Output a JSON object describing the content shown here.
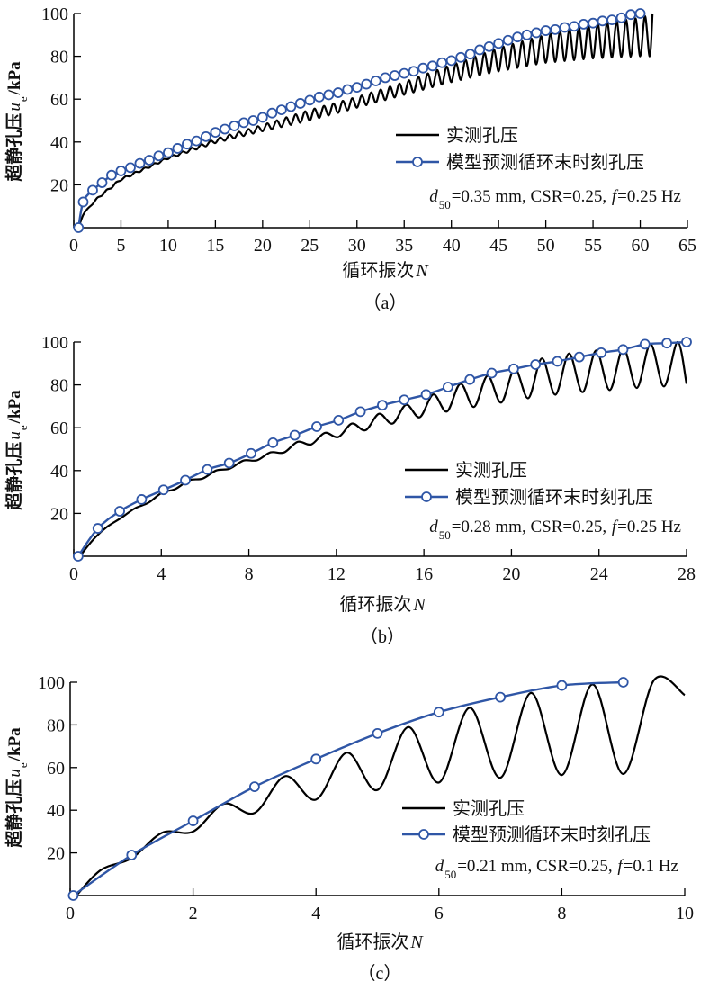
{
  "colors": {
    "measured": "#000000",
    "model": "#2f56a6",
    "marker_fill": "#ffffff"
  },
  "chart_data": [
    {
      "type": "line",
      "panel_label": "（a）",
      "xlabel": "循环振次",
      "xlabel_var": "N",
      "ylabel": "超静孔压",
      "ylabel_var": "u",
      "ylabel_sub": "e",
      "ylabel_unit": "/kPa",
      "xlim": [
        0,
        65
      ],
      "ylim": [
        0,
        100
      ],
      "xticks": [
        0,
        5,
        10,
        15,
        20,
        25,
        30,
        35,
        40,
        45,
        50,
        55,
        60,
        65
      ],
      "yticks": [
        20,
        40,
        60,
        80,
        100
      ],
      "legend": {
        "placement": "center-right",
        "measured": "实测孔压",
        "model": "模型预测循环末时刻孔压"
      },
      "annotation": {
        "d_sym": "d",
        "d_sub": "50",
        "text1": "=0.35 mm, CSR=0.25, ",
        "f_sym": "f",
        "text2": "=0.25 Hz"
      },
      "model": {
        "x": [
          0.5,
          1,
          2,
          3,
          4,
          5,
          6,
          7,
          8,
          9,
          10,
          11,
          12,
          13,
          14,
          15,
          16,
          17,
          18,
          19,
          20,
          21,
          22,
          23,
          24,
          25,
          26,
          27,
          28,
          29,
          30,
          31,
          32,
          33,
          34,
          35,
          36,
          37,
          38,
          39,
          40,
          41,
          42,
          43,
          44,
          45,
          46,
          47,
          48,
          49,
          50,
          51,
          52,
          53,
          54,
          55,
          56,
          57,
          58,
          59,
          60
        ],
        "y": [
          0,
          12,
          17.5,
          21,
          24.5,
          26.5,
          28,
          30,
          31.5,
          33.5,
          35,
          37,
          39,
          40.5,
          42.5,
          44.5,
          46,
          47.5,
          49,
          50,
          51.5,
          53.5,
          55,
          56.5,
          58,
          59.5,
          61,
          62,
          63,
          64.5,
          65.5,
          67,
          68.5,
          70,
          71,
          72,
          73,
          74.5,
          75.5,
          77,
          78,
          79.5,
          81,
          83,
          84.5,
          86,
          87.5,
          89,
          90,
          91,
          92,
          92.5,
          93.5,
          94,
          95,
          95.5,
          96.5,
          97,
          98,
          99.5,
          100
        ]
      },
      "measured": {
        "start": [
          0.5,
          0
        ],
        "end": [
          61.3,
          100
        ],
        "period": 1,
        "first_peak": 1.5,
        "upper": [
          [
            1,
            6
          ],
          [
            2,
            12
          ],
          [
            3,
            16
          ],
          [
            5,
            23
          ],
          [
            10,
            33
          ],
          [
            15,
            41.5
          ],
          [
            20,
            48
          ],
          [
            25,
            55
          ],
          [
            30,
            61
          ],
          [
            35,
            68
          ],
          [
            40,
            76
          ],
          [
            45,
            84
          ],
          [
            50,
            90
          ],
          [
            55,
            95
          ],
          [
            60,
            98
          ],
          [
            61.3,
            100
          ]
        ],
        "lower": [
          [
            1,
            5
          ],
          [
            2,
            11
          ],
          [
            3,
            15
          ],
          [
            5,
            22
          ],
          [
            10,
            32
          ],
          [
            15,
            39.5
          ],
          [
            20,
            45
          ],
          [
            25,
            50
          ],
          [
            30,
            56
          ],
          [
            35,
            62
          ],
          [
            40,
            68
          ],
          [
            45,
            73
          ],
          [
            50,
            77
          ],
          [
            55,
            79
          ],
          [
            60,
            80
          ],
          [
            61.3,
            80
          ]
        ]
      }
    },
    {
      "type": "line",
      "panel_label": "（b）",
      "xlabel": "循环振次",
      "xlabel_var": "N",
      "ylabel": "超静孔压",
      "ylabel_var": "u",
      "ylabel_sub": "e",
      "ylabel_unit": "/kPa",
      "xlim": [
        0,
        28
      ],
      "ylim": [
        0,
        100
      ],
      "xticks": [
        0,
        4,
        8,
        12,
        16,
        20,
        24,
        28
      ],
      "yticks": [
        20,
        40,
        60,
        80,
        100
      ],
      "legend": {
        "placement": "center-right",
        "measured": "实测孔压",
        "model": "模型预测循环末时刻孔压"
      },
      "annotation": {
        "d_sym": "d",
        "d_sub": "50",
        "text1": "=0.28 mm, CSR=0.25, ",
        "f_sym": "f",
        "text2": "=0.25 Hz"
      },
      "model": {
        "x": [
          0.2,
          1.1,
          2.1,
          3.1,
          4.1,
          5.1,
          6.1,
          7.1,
          8.1,
          9.1,
          10.1,
          11.1,
          12.1,
          13.1,
          14.1,
          15.1,
          16.1,
          17.1,
          18.1,
          19.1,
          20.1,
          21.1,
          22.1,
          23.1,
          24.1,
          25.1,
          26.1,
          27.1,
          28
        ],
        "y": [
          0,
          13,
          21,
          26.5,
          31,
          35.5,
          40.5,
          43.5,
          48,
          53,
          56.5,
          60.5,
          63.5,
          67.5,
          70.5,
          73,
          75.5,
          79,
          82.5,
          85.5,
          87.5,
          89.5,
          91,
          93,
          95,
          96.5,
          99,
          99.5,
          100
        ]
      },
      "measured": {
        "start": [
          0.3,
          0
        ],
        "end": [
          28,
          80.5
        ],
        "period": 1.24,
        "first_peak": 1.55,
        "upper": [
          [
            0.5,
            3
          ],
          [
            1,
            9
          ],
          [
            2,
            18
          ],
          [
            3,
            23.5
          ],
          [
            4,
            29.5
          ],
          [
            5,
            34.5
          ],
          [
            6.5,
            40
          ],
          [
            7.7,
            44.5
          ],
          [
            9,
            48.5
          ],
          [
            10.1,
            53
          ],
          [
            11.3,
            57
          ],
          [
            12.6,
            61.5
          ],
          [
            13.8,
            66
          ],
          [
            15,
            70
          ],
          [
            16.3,
            75
          ],
          [
            17.5,
            80
          ],
          [
            18.8,
            84
          ],
          [
            20,
            87
          ],
          [
            21.2,
            92
          ],
          [
            22.5,
            94.5
          ],
          [
            23.8,
            96
          ],
          [
            25,
            97
          ],
          [
            26.3,
            99
          ],
          [
            27.5,
            100
          ],
          [
            28,
            100
          ]
        ],
        "lower": [
          [
            0.5,
            2.5
          ],
          [
            1,
            8.5
          ],
          [
            2,
            17
          ],
          [
            3,
            22.5
          ],
          [
            4,
            28.5
          ],
          [
            5,
            33
          ],
          [
            6.5,
            38.5
          ],
          [
            7.7,
            43
          ],
          [
            9,
            46.5
          ],
          [
            10.1,
            50
          ],
          [
            11.3,
            53.5
          ],
          [
            12.6,
            57
          ],
          [
            13.8,
            60
          ],
          [
            15,
            63
          ],
          [
            16.3,
            66
          ],
          [
            17.5,
            68.5
          ],
          [
            18.8,
            70.5
          ],
          [
            20,
            72.5
          ],
          [
            21.2,
            74.5
          ],
          [
            22.5,
            76
          ],
          [
            23.8,
            77
          ],
          [
            25,
            78
          ],
          [
            26.3,
            79
          ],
          [
            27.5,
            79.5
          ],
          [
            28,
            80
          ]
        ]
      }
    },
    {
      "type": "line",
      "panel_label": "（c）",
      "xlabel": "循环振次",
      "xlabel_var": "N",
      "ylabel": "超静孔压",
      "ylabel_var": "u",
      "ylabel_sub": "e",
      "ylabel_unit": "/kPa",
      "xlim": [
        0,
        10
      ],
      "ylim": [
        0,
        100
      ],
      "xticks": [
        0,
        2,
        4,
        6,
        8,
        10
      ],
      "yticks": [
        20,
        40,
        60,
        80,
        100
      ],
      "legend": {
        "placement": "center-right",
        "measured": "实测孔压",
        "model": "模型预测循环末时刻孔压"
      },
      "annotation": {
        "d_sym": "d",
        "d_sub": "50",
        "text1": "=0.21 mm, CSR=0.25, ",
        "f_sym": "f",
        "text2": "=0.1 Hz"
      },
      "model": {
        "x": [
          0.05,
          1,
          2,
          3,
          4,
          5,
          6,
          7,
          8,
          9
        ],
        "y": [
          0,
          19,
          35,
          51,
          64,
          76,
          86,
          93,
          98.5,
          100
        ]
      },
      "measured": {
        "start": [
          0.1,
          0
        ],
        "end": [
          10,
          94
        ],
        "period": 1,
        "first_peak": 0.5,
        "upper": [
          [
            0.5,
            12
          ],
          [
            1.5,
            29.5
          ],
          [
            2.5,
            43
          ],
          [
            3.5,
            56
          ],
          [
            4.5,
            67
          ],
          [
            5.5,
            79
          ],
          [
            6.5,
            88
          ],
          [
            7.5,
            95
          ],
          [
            8.5,
            99
          ],
          [
            9.5,
            101
          ],
          [
            10,
            101
          ]
        ],
        "lower": [
          [
            0.5,
            10
          ],
          [
            1.5,
            25
          ],
          [
            2.5,
            35
          ],
          [
            3.5,
            42.5
          ],
          [
            4.5,
            47.5
          ],
          [
            5.5,
            51.5
          ],
          [
            6.5,
            54.5
          ],
          [
            7.5,
            56
          ],
          [
            8.5,
            57
          ],
          [
            9.5,
            57
          ],
          [
            10,
            57
          ]
        ]
      }
    }
  ]
}
